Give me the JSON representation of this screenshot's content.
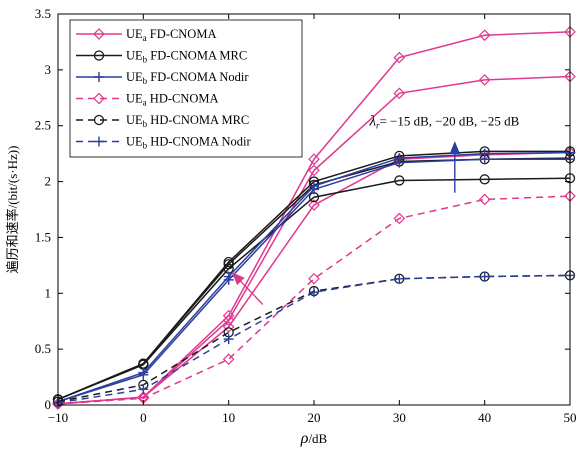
{
  "chart_data": {
    "type": "line",
    "xlabel": "ρ/dB",
    "ylabel": "遍历和速率/(bit/(s·Hz))",
    "xlim": [
      -10,
      50
    ],
    "ylim": [
      0,
      3.5
    ],
    "xticks": [
      "-10",
      "0",
      "10",
      "20",
      "30",
      "40",
      "50"
    ],
    "yticks": [
      "0",
      "0.5",
      "1",
      "1.5",
      "2",
      "2.5",
      "3",
      "3.5"
    ],
    "grid": false,
    "legend_position": "top-left",
    "x": [
      -10,
      0,
      10,
      20,
      30,
      40,
      50
    ],
    "series": [
      {
        "name": "UEa FD-CNOMA",
        "label_main": "UE",
        "label_sub": "a",
        "label_rest": " FD-CNOMA",
        "color": "#e0388f",
        "dash": "solid",
        "marker": "diamond",
        "values": [
          0.01,
          0.07,
          0.8,
          2.2,
          3.11,
          3.31,
          3.34
        ]
      },
      {
        "name": "UEa FD-CNOMA",
        "label_main": "UE",
        "label_sub": "a",
        "label_rest": " FD-CNOMA",
        "color": "#e0388f",
        "dash": "solid",
        "marker": "diamond",
        "values": [
          0.01,
          0.07,
          0.76,
          2.1,
          2.79,
          2.91,
          2.94
        ]
      },
      {
        "name": "UEa FD-CNOMA",
        "label_main": "UE",
        "label_sub": "a",
        "label_rest": " FD-CNOMA",
        "color": "#e0388f",
        "dash": "solid",
        "marker": "diamond",
        "values": [
          0.01,
          0.07,
          0.7,
          1.79,
          2.2,
          2.24,
          2.26
        ]
      },
      {
        "name": "UEb FD-CNOMA MRC",
        "label_main": "UE",
        "label_sub": "b",
        "label_rest": " FD-CNOMA MRC",
        "color": "#1a1a1a",
        "dash": "solid",
        "marker": "circle",
        "values": [
          0.05,
          0.37,
          1.28,
          2.0,
          2.23,
          2.27,
          2.27
        ]
      },
      {
        "name": "UEb FD-CNOMA MRC",
        "label_main": "UE",
        "label_sub": "b",
        "label_rest": " FD-CNOMA MRC",
        "color": "#1a1a1a",
        "dash": "solid",
        "marker": "circle",
        "values": [
          0.05,
          0.37,
          1.26,
          1.97,
          2.18,
          2.2,
          2.21
        ]
      },
      {
        "name": "UEb FD-CNOMA MRC",
        "label_main": "UE",
        "label_sub": "b",
        "label_rest": " FD-CNOMA MRC",
        "color": "#1a1a1a",
        "dash": "solid",
        "marker": "circle",
        "values": [
          0.05,
          0.36,
          1.22,
          1.86,
          2.01,
          2.02,
          2.03
        ]
      },
      {
        "name": "UEb FD-CNOMA Nodir",
        "label_main": "UE",
        "label_sub": "b",
        "label_rest": " FD-CNOMA Nodir",
        "color": "#2b3f9e",
        "dash": "solid",
        "marker": "plus",
        "values": [
          0.03,
          0.29,
          1.15,
          1.96,
          2.21,
          2.25,
          2.26
        ]
      },
      {
        "name": "UEb FD-CNOMA Nodir",
        "label_main": "UE",
        "label_sub": "b",
        "label_rest": " FD-CNOMA Nodir",
        "color": "#2b3f9e",
        "dash": "solid",
        "marker": "plus",
        "values": [
          0.03,
          0.27,
          1.12,
          1.93,
          2.17,
          2.2,
          2.2
        ]
      },
      {
        "name": "UEa HD-CNOMA",
        "label_main": "UE",
        "label_sub": "a",
        "label_rest": " HD-CNOMA",
        "color": "#e0388f",
        "dash": "dashed",
        "marker": "diamond",
        "values": [
          0.01,
          0.06,
          0.41,
          1.13,
          1.67,
          1.84,
          1.87
        ]
      },
      {
        "name": "UEb HD-CNOMA MRC",
        "label_main": "UE",
        "label_sub": "b",
        "label_rest": " HD-CNOMA MRC",
        "color": "#1a1a1a",
        "dash": "dashed",
        "marker": "circle",
        "values": [
          0.03,
          0.18,
          0.65,
          1.02,
          1.13,
          1.15,
          1.16
        ]
      },
      {
        "name": "UEb HD-CNOMA Nodir",
        "label_main": "UE",
        "label_sub": "b",
        "label_rest": " HD-CNOMA Nodir",
        "color": "#2b3f9e",
        "dash": "dashed",
        "marker": "plus",
        "values": [
          0.02,
          0.14,
          0.59,
          1.01,
          1.13,
          1.15,
          1.16
        ]
      }
    ],
    "legend": [
      0,
      3,
      6,
      8,
      9,
      10
    ],
    "annotations": [
      {
        "text_main": "λ",
        "text_sub": "r",
        "text_rest": "= −15 dB, −20 dB, −25 dB",
        "color": "#2b3f9e",
        "arrow_from": [
          36.5,
          1.9
        ],
        "arrow_to": [
          36.5,
          2.35
        ],
        "text_at": [
          26.5,
          2.5
        ]
      },
      {
        "color": "#e0388f",
        "arrow_from": [
          14,
          0.9
        ],
        "arrow_to": [
          10.5,
          1.18
        ]
      }
    ]
  }
}
